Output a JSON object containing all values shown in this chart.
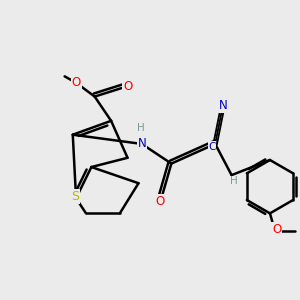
{
  "bg_color": "#ebebeb",
  "bond_color": "#000000",
  "bond_width": 1.8,
  "atom_colors": {
    "O": "#ff0000",
    "N": "#0000bb",
    "S": "#b8b800",
    "C_blue": "#0000bb",
    "H": "#7a9a9a",
    "default": "#000000"
  },
  "font_size": 8.5,
  "fig_size": [
    3.0,
    3.0
  ],
  "dpi": 100
}
